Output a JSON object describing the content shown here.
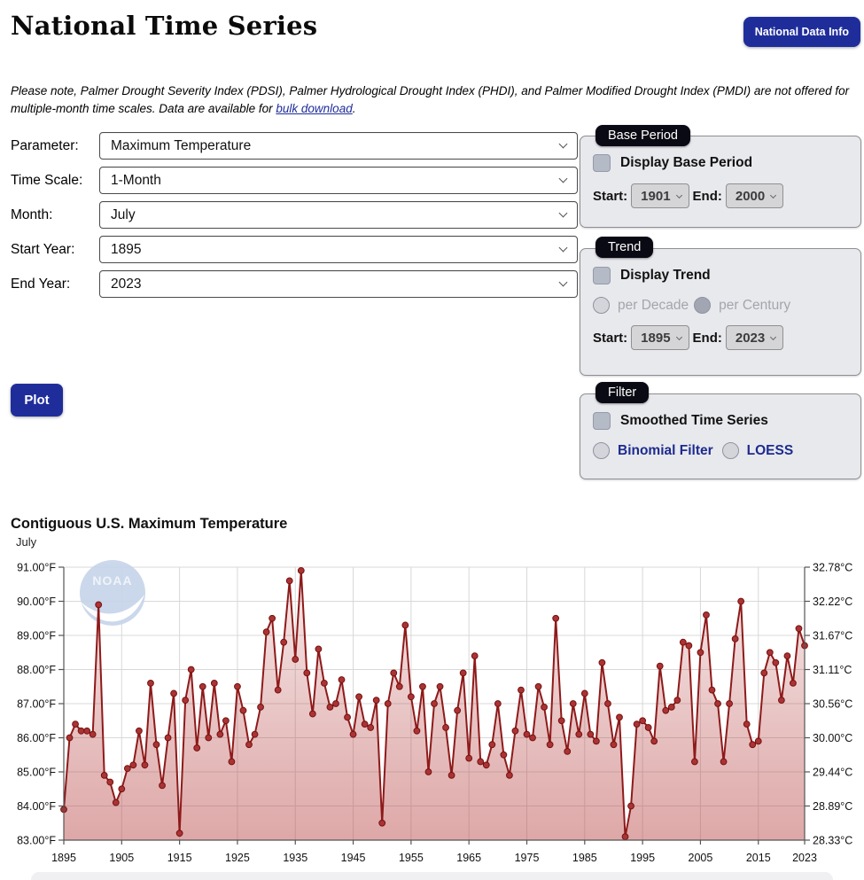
{
  "page": {
    "title": "National Time Series"
  },
  "header": {
    "info_button": "National Data Info"
  },
  "notice": {
    "text_before_link": "Please note, Palmer Drought Severity Index (PDSI), Palmer Hydrological Drought Index (PHDI), and Palmer Modified Drought Index (PMDI) are not offered for multiple-month time scales. Data are available for ",
    "link_text": "bulk download",
    "text_after_link": "."
  },
  "form": {
    "fields": [
      {
        "label": "Parameter:",
        "value": "Maximum Temperature"
      },
      {
        "label": "Time Scale:",
        "value": "1-Month"
      },
      {
        "label": "Month:",
        "value": "July"
      },
      {
        "label": "Start Year:",
        "value": "1895"
      },
      {
        "label": "End Year:",
        "value": "2023"
      }
    ],
    "plot_button": "Plot"
  },
  "panels": {
    "base_period": {
      "tag": "Base Period",
      "checkbox_label": "Display Base Period",
      "start_label": "Start:",
      "start_value": "1901",
      "end_label": "End:",
      "end_value": "2000"
    },
    "trend": {
      "tag": "Trend",
      "checkbox_label": "Display Trend",
      "radio_decade": "per Decade",
      "radio_century": "per Century",
      "start_label": "Start:",
      "start_value": "1895",
      "end_label": "End:",
      "end_value": "2023"
    },
    "filter": {
      "tag": "Filter",
      "checkbox_label": "Smoothed Time Series",
      "radio_binomial": "Binomial Filter",
      "radio_loess": "LOESS"
    }
  },
  "colors": {
    "accent_navy": "#1f2d9b",
    "link": "#1f2d9b",
    "panel_bg": "#e8e9ed",
    "tag_bg": "#0a0a14",
    "line": "#8e1a1a",
    "marker_fill": "#aa3333",
    "marker_stroke": "#771111",
    "grid": "#d8d8d8",
    "axis": "#555555",
    "watermark_blue": "#c6d4e9"
  },
  "chart": {
    "title": "Contiguous U.S. Maximum Temperature",
    "subtitle": "July",
    "watermark_text": "NOAA"
  },
  "chart_data": {
    "type": "line",
    "title": "Contiguous U.S. Maximum Temperature",
    "subtitle": "July",
    "ylabel_left_unit": "°F",
    "ylabel_right_unit": "°C",
    "ylim_f": [
      83,
      91
    ],
    "x_start_year": 1895,
    "x_end_year": 2023,
    "x_tick_labels": [
      "1895",
      "1905",
      "1915",
      "1925",
      "1935",
      "1945",
      "1955",
      "1965",
      "1975",
      "1985",
      "1995",
      "2005",
      "2015",
      "2023"
    ],
    "y_left_labels": [
      "91.00°F",
      "90.00°F",
      "89.00°F",
      "88.00°F",
      "87.00°F",
      "86.00°F",
      "85.00°F",
      "84.00°F",
      "83.00°F"
    ],
    "y_right_labels": [
      "32.78°C",
      "32.22°C",
      "31.67°C",
      "31.11°C",
      "30.56°C",
      "30.00°C",
      "29.44°C",
      "28.89°C",
      "28.33°C"
    ],
    "grid": true,
    "legend": "none",
    "area_gradient_stops": [
      [
        "0%",
        "rgba(180,60,60,0.10)"
      ],
      [
        "55%",
        "rgba(180,60,60,0.30)"
      ],
      [
        "100%",
        "rgba(186,72,72,0.48)"
      ]
    ],
    "series": [
      {
        "name": "Maximum Temperature",
        "first_year": 1895,
        "values_f": [
          83.9,
          86.0,
          86.4,
          86.2,
          86.2,
          86.1,
          89.9,
          84.9,
          84.7,
          84.1,
          84.5,
          85.1,
          85.2,
          86.2,
          85.2,
          87.6,
          85.8,
          84.6,
          86.0,
          87.3,
          83.2,
          87.1,
          88.0,
          85.7,
          87.5,
          86.0,
          87.6,
          86.1,
          86.5,
          85.3,
          87.5,
          86.8,
          85.8,
          86.1,
          86.9,
          89.1,
          89.5,
          87.4,
          88.8,
          90.6,
          88.3,
          90.9,
          87.9,
          86.7,
          88.6,
          87.6,
          86.9,
          87.0,
          87.7,
          86.6,
          86.1,
          87.2,
          86.4,
          86.3,
          87.1,
          83.5,
          87.0,
          87.9,
          87.5,
          89.3,
          87.2,
          86.2,
          87.5,
          85.0,
          87.0,
          87.5,
          86.3,
          84.9,
          86.8,
          87.9,
          85.4,
          88.4,
          85.3,
          85.2,
          85.8,
          87.0,
          85.5,
          84.9,
          86.2,
          87.4,
          86.1,
          86.0,
          87.5,
          86.9,
          85.8,
          89.5,
          86.5,
          85.6,
          87.0,
          86.1,
          87.3,
          86.1,
          85.9,
          88.2,
          87.0,
          85.8,
          86.6,
          83.1,
          84.0,
          86.4,
          86.5,
          86.3,
          85.9,
          88.1,
          86.8,
          86.9,
          87.1,
          88.8,
          88.7,
          85.3,
          88.5,
          89.6,
          87.4,
          87.0,
          85.3,
          87.0,
          88.9,
          90.0,
          86.4,
          85.8,
          85.9,
          87.9,
          88.5,
          88.2,
          87.1,
          88.4,
          87.6,
          89.2,
          88.7
        ]
      }
    ]
  }
}
